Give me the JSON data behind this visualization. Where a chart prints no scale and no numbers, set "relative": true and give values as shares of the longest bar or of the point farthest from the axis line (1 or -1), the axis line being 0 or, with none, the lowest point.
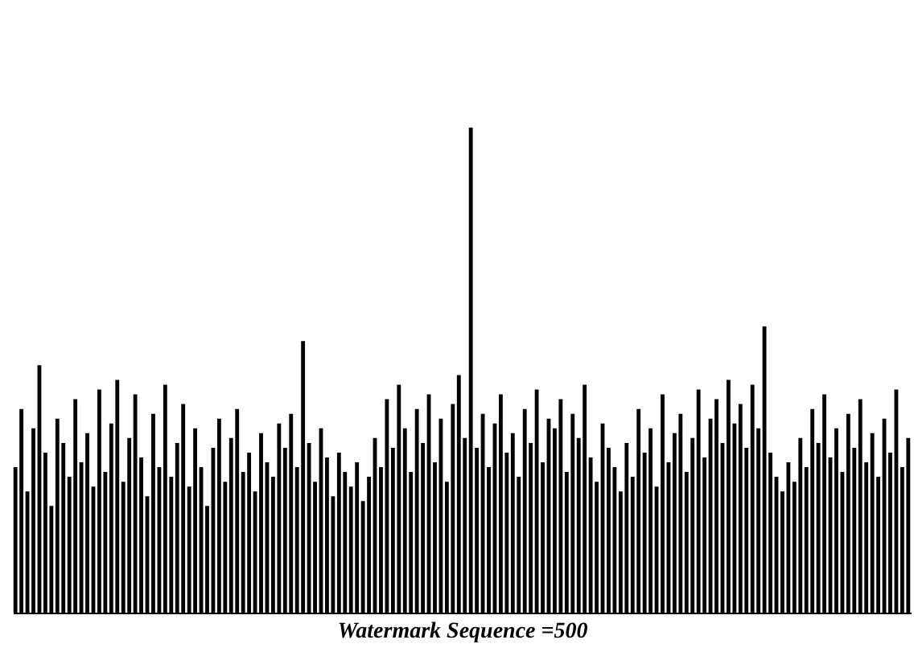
{
  "chart_data": {
    "type": "bar",
    "relative": true,
    "xlabel": "Watermark Sequence =500",
    "color": "#000000",
    "categories": [
      null,
      null,
      null,
      null,
      null,
      null,
      null,
      null,
      null,
      null,
      null,
      null,
      null,
      null,
      null,
      null,
      null,
      null,
      null,
      null,
      null,
      null,
      null,
      null,
      null,
      null,
      null,
      null,
      null,
      null,
      null,
      null,
      null,
      null,
      null,
      null,
      null,
      null,
      null,
      null,
      null,
      null,
      null,
      null,
      null,
      null,
      null,
      null,
      null,
      null,
      null,
      null,
      null,
      null,
      null,
      null,
      null,
      null,
      null,
      null,
      null,
      null,
      null,
      null,
      null,
      null,
      null,
      null,
      null,
      null,
      null,
      null,
      null,
      null,
      null,
      null,
      null,
      null,
      null,
      null,
      null,
      null,
      null,
      null,
      null,
      null,
      null,
      null,
      null,
      null,
      null,
      null,
      null,
      null,
      null,
      null,
      null,
      null,
      null,
      null,
      null,
      null,
      null,
      null,
      null,
      null,
      null,
      null,
      null,
      null,
      null,
      null,
      null,
      null,
      null,
      null,
      null,
      null,
      null,
      null,
      null,
      null,
      null,
      null,
      null,
      null,
      null,
      null,
      null,
      null,
      null,
      null,
      null,
      null,
      null,
      null,
      null,
      null,
      null,
      null,
      null,
      null,
      null,
      null,
      null,
      null,
      null,
      null,
      null,
      null
    ],
    "values": [
      0.3,
      0.42,
      0.25,
      0.38,
      0.51,
      0.33,
      0.22,
      0.4,
      0.35,
      0.28,
      0.44,
      0.31,
      0.37,
      0.26,
      0.46,
      0.29,
      0.39,
      0.48,
      0.27,
      0.36,
      0.45,
      0.32,
      0.24,
      0.41,
      0.3,
      0.47,
      0.28,
      0.35,
      0.43,
      0.26,
      0.38,
      0.3,
      0.22,
      0.34,
      0.4,
      0.27,
      0.36,
      0.42,
      0.29,
      0.33,
      0.25,
      0.37,
      0.31,
      0.28,
      0.39,
      0.34,
      0.41,
      0.3,
      0.56,
      0.35,
      0.27,
      0.38,
      0.32,
      0.24,
      0.33,
      0.29,
      0.26,
      0.31,
      0.23,
      0.28,
      0.36,
      0.3,
      0.44,
      0.34,
      0.47,
      0.38,
      0.29,
      0.42,
      0.35,
      0.45,
      0.31,
      0.4,
      0.27,
      0.43,
      0.49,
      0.36,
      1,
      0.34,
      0.41,
      0.3,
      0.39,
      0.45,
      0.33,
      0.37,
      0.28,
      0.42,
      0.35,
      0.46,
      0.31,
      0.4,
      0.38,
      0.44,
      0.29,
      0.41,
      0.36,
      0.47,
      0.32,
      0.27,
      0.39,
      0.34,
      0.3,
      0.25,
      0.35,
      0.28,
      0.42,
      0.33,
      0.38,
      0.26,
      0.45,
      0.31,
      0.37,
      0.41,
      0.29,
      0.36,
      0.46,
      0.32,
      0.4,
      0.44,
      0.35,
      0.48,
      0.39,
      0.43,
      0.34,
      0.47,
      0.38,
      0.59,
      0.33,
      0.28,
      0.25,
      0.31,
      0.27,
      0.36,
      0.3,
      0.42,
      0.35,
      0.45,
      0.32,
      0.38,
      0.29,
      0.41,
      0.34,
      0.44,
      0.31,
      0.37,
      0.28,
      0.4,
      0.33,
      0.46,
      0.3,
      0.36
    ]
  }
}
